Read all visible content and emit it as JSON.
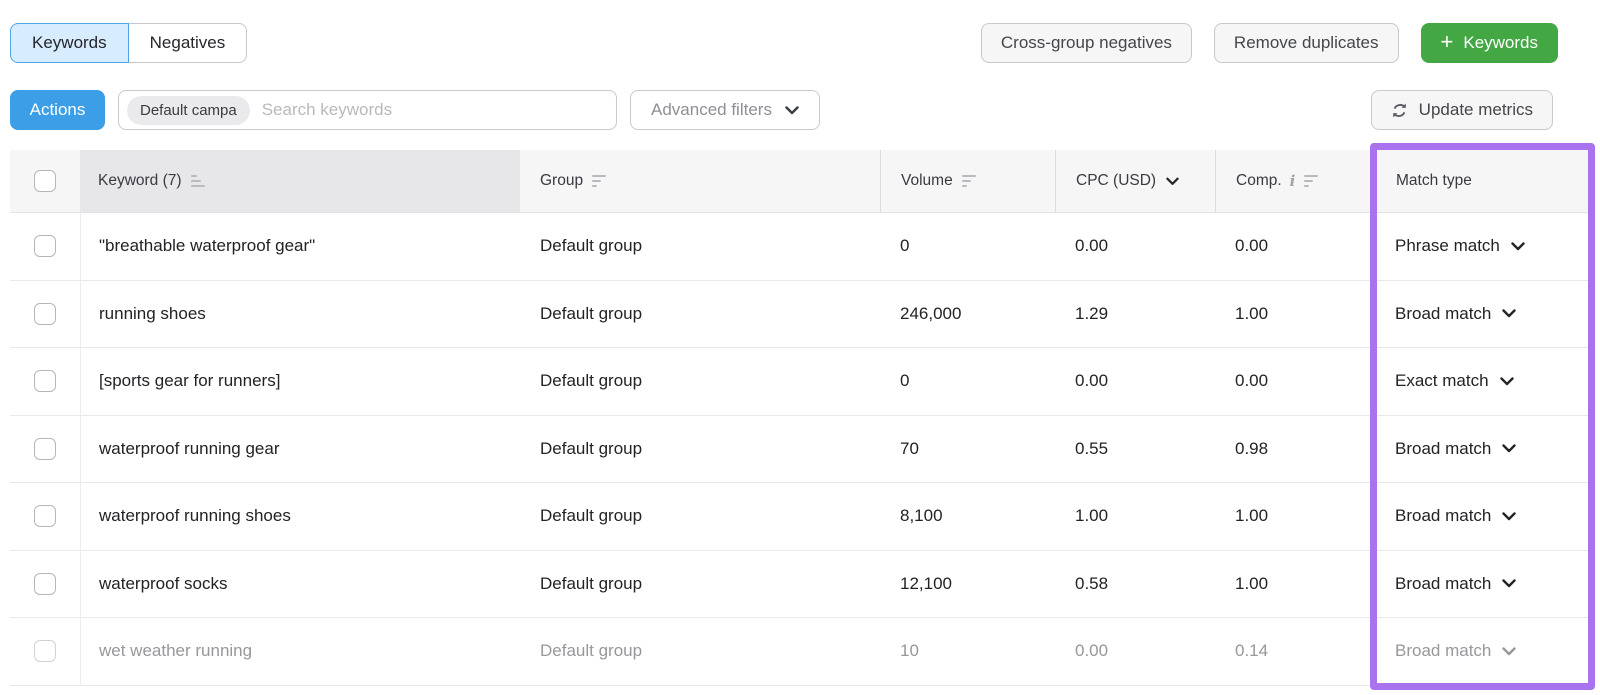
{
  "view_tabs": {
    "keywords": "Keywords",
    "negatives": "Negatives"
  },
  "header_actions": {
    "cross_group_negatives": "Cross-group negatives",
    "remove_duplicates": "Remove duplicates",
    "add_keywords": "Keywords",
    "add_keywords_plus": "+"
  },
  "toolbar": {
    "actions": "Actions",
    "campaign_pill": "Default campa",
    "search_placeholder": "Search keywords",
    "advanced_filters": "Advanced filters",
    "update_metrics": "Update metrics"
  },
  "table": {
    "columns": {
      "keyword": "Keyword (7)",
      "group": "Group",
      "volume": "Volume",
      "cpc": "CPC (USD)",
      "comp": "Comp.",
      "comp_info": "i",
      "match_type": "Match type"
    },
    "rows": [
      {
        "keyword": "\"breathable waterproof gear\"",
        "group": "Default group",
        "volume": "0",
        "cpc": "0.00",
        "comp": "0.00",
        "match": "Phrase match"
      },
      {
        "keyword": "running shoes",
        "group": "Default group",
        "volume": "246,000",
        "cpc": "1.29",
        "comp": "1.00",
        "match": "Broad match"
      },
      {
        "keyword": "[sports gear for runners]",
        "group": "Default group",
        "volume": "0",
        "cpc": "0.00",
        "comp": "0.00",
        "match": "Exact match"
      },
      {
        "keyword": "waterproof running gear",
        "group": "Default group",
        "volume": "70",
        "cpc": "0.55",
        "comp": "0.98",
        "match": "Broad match"
      },
      {
        "keyword": "waterproof running shoes",
        "group": "Default group",
        "volume": "8,100",
        "cpc": "1.00",
        "comp": "1.00",
        "match": "Broad match"
      },
      {
        "keyword": "waterproof socks",
        "group": "Default group",
        "volume": "12,100",
        "cpc": "0.58",
        "comp": "1.00",
        "match": "Broad match"
      },
      {
        "keyword": "wet weather running",
        "group": "Default group",
        "volume": "10",
        "cpc": "0.00",
        "comp": "0.14",
        "match": "Broad match",
        "faded": true
      }
    ]
  },
  "colors": {
    "active_tab_bg": "#d7ecfc",
    "active_tab_border": "#54a5e8",
    "primary_blue": "#3b9ee6",
    "add_green": "#43a843",
    "highlight_purple": "#a973ef"
  },
  "icons": {
    "plus": "+",
    "chevron_down": "v",
    "refresh": "circular-arrows",
    "info": "i",
    "sort": "bars"
  }
}
